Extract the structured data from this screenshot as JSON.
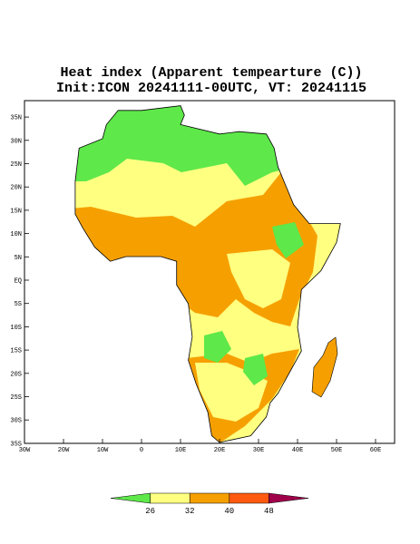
{
  "header": {
    "title": "Heat index (Apparent tempearture (C))",
    "subtitle": "Init:ICON 20241111-00UTC, VT: 20241115"
  },
  "map": {
    "lon_ticks": [
      {
        "value": -30,
        "label": "30W"
      },
      {
        "value": -20,
        "label": "20W"
      },
      {
        "value": -10,
        "label": "10W"
      },
      {
        "value": 0,
        "label": "0"
      },
      {
        "value": 10,
        "label": "10E"
      },
      {
        "value": 20,
        "label": "20E"
      },
      {
        "value": 30,
        "label": "30E"
      },
      {
        "value": 40,
        "label": "40E"
      },
      {
        "value": 50,
        "label": "50E"
      },
      {
        "value": 60,
        "label": "60E"
      }
    ],
    "lat_ticks": [
      {
        "value": 35,
        "label": "35N"
      },
      {
        "value": 30,
        "label": "30N"
      },
      {
        "value": 25,
        "label": "25N"
      },
      {
        "value": 20,
        "label": "20N"
      },
      {
        "value": 15,
        "label": "15N"
      },
      {
        "value": 10,
        "label": "10N"
      },
      {
        "value": 5,
        "label": "5N"
      },
      {
        "value": 0,
        "label": "EQ"
      },
      {
        "value": -5,
        "label": "5S"
      },
      {
        "value": -10,
        "label": "10S"
      },
      {
        "value": -15,
        "label": "15S"
      },
      {
        "value": -20,
        "label": "20S"
      },
      {
        "value": -25,
        "label": "25S"
      },
      {
        "value": -30,
        "label": "30S"
      },
      {
        "value": -35,
        "label": "35S"
      }
    ]
  },
  "colorbar": {
    "levels": [
      26,
      32,
      40,
      48
    ],
    "colors": [
      "#5ee84a",
      "#ffff80",
      "#f5a000",
      "#ff5a10",
      "#a0004a"
    ]
  }
}
